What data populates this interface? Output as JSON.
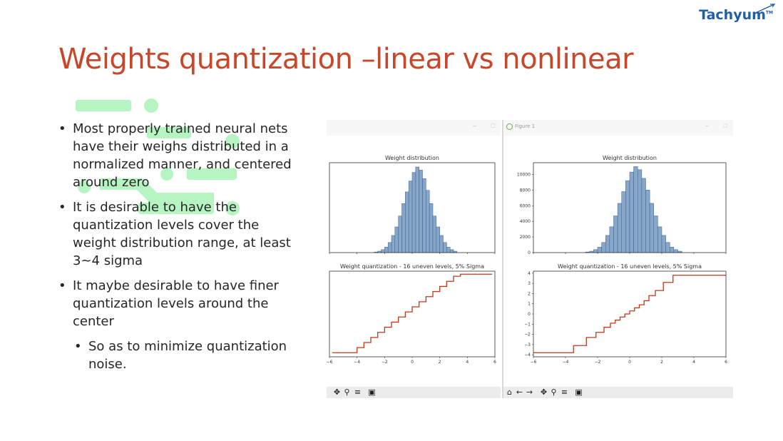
{
  "logo": {
    "text": "Tachyum",
    "tm": "TM"
  },
  "slide": {
    "title": "Weights quantization –linear vs nonlinear"
  },
  "bullets": [
    "Most properly trained neural nets have their weighs distributed in a normalized manner, and centered around zero",
    "It is desirable to have the quantization levels cover the weight distribution range, at least 3~4 sigma",
    "It maybe desirable to have finer quantization levels around the center"
  ],
  "sub_bullets": [
    "So as to minimize quantization noise."
  ],
  "figure_windows": [
    {
      "title": "",
      "toolbar": [
        "pan",
        "zoom",
        "configure",
        "save"
      ]
    },
    {
      "title": "Figure 1",
      "toolbar": [
        "home",
        "back",
        "forward",
        "pan",
        "zoom",
        "configure",
        "save"
      ]
    }
  ],
  "colors": {
    "title": "#c8472b",
    "logo": "#1f5fa8",
    "hist_fill": "#86a7c9",
    "hist_edge": "#3d5f86",
    "step_line": "#c0391b",
    "deco_green": "#b6f5c2"
  },
  "chart_data": [
    {
      "type": "bar",
      "title": "Weight distribution",
      "xlim": [
        -6,
        6
      ],
      "bin_width": 0.25,
      "bin_start": -2.75,
      "values": [
        80,
        180,
        380,
        700,
        1300,
        2200,
        3300,
        4700,
        6300,
        7800,
        9200,
        10300,
        11000,
        10600,
        9500,
        8000,
        6300,
        4700,
        3300,
        2200,
        1300,
        700,
        380,
        180
      ],
      "yticks_visible": false
    },
    {
      "type": "line",
      "title": "Weight quantization - 16 uneven levels, 5% Sigma",
      "xlim": [
        -6,
        6
      ],
      "xticks": [
        -6,
        -4,
        -2,
        0,
        2,
        4,
        6
      ],
      "yticks_visible": false,
      "steps": {
        "x_min": -5.8,
        "x_max": 5.8,
        "edges": [
          -4,
          -3.5,
          -3,
          -2.5,
          -2,
          -1.5,
          -1,
          -0.5,
          0,
          0.5,
          1,
          1.5,
          2,
          2.5,
          3,
          3.5,
          4
        ],
        "levels": [
          -3.8,
          -3.3,
          -2.8,
          -2.3,
          -1.8,
          -1.3,
          -0.8,
          -0.3,
          0.2,
          0.7,
          1.2,
          1.7,
          2.2,
          2.7,
          3.2,
          3.7,
          3.9
        ],
        "ylim": [
          -4.2,
          4.2
        ]
      }
    },
    {
      "type": "bar",
      "title": "Weight distribution",
      "xlim": [
        -6,
        6
      ],
      "ylim": [
        0,
        11500
      ],
      "yticks": [
        0,
        2000,
        4000,
        6000,
        8000,
        10000
      ],
      "bin_width": 0.25,
      "bin_start": -2.75,
      "values": [
        80,
        180,
        380,
        700,
        1300,
        2200,
        3300,
        4700,
        6300,
        7800,
        9200,
        10300,
        11000,
        10600,
        9500,
        8000,
        6300,
        4700,
        3300,
        2200,
        1300,
        700,
        380,
        180
      ]
    },
    {
      "type": "line",
      "title": "Weight quantization - 16 uneven levels, 5% Sigma",
      "xlim": [
        -6,
        6
      ],
      "ylim": [
        -4.2,
        4.2
      ],
      "xticks": [
        -6,
        -4,
        -2,
        0,
        2,
        4,
        6
      ],
      "yticks": [
        -4,
        -3,
        -2,
        -1,
        0,
        1,
        2,
        3,
        4
      ],
      "steps": {
        "x_min": -6,
        "x_max": 6,
        "edges": [
          -3.5,
          -2.7,
          -2.1,
          -1.6,
          -1.2,
          -0.9,
          -0.6,
          -0.3,
          0,
          0.3,
          0.6,
          0.9,
          1.2,
          1.6,
          2.1,
          2.7,
          3.5
        ],
        "levels": [
          -3.8,
          -3.1,
          -2.3,
          -1.8,
          -1.3,
          -0.9,
          -0.6,
          -0.3,
          0,
          0.3,
          0.6,
          0.9,
          1.3,
          1.8,
          2.3,
          3.1,
          3.8
        ]
      }
    }
  ]
}
